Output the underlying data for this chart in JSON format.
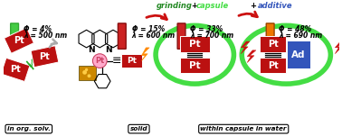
{
  "capsule_color": "#44dd44",
  "arrow_color": "#cc1111",
  "pt_box_color": "#bb1111",
  "pt_text_color": "#ffffff",
  "ad_box_color": "#3355bb",
  "grinding_text_green": "grinding",
  "grinding_text_black": " + ",
  "grinding_text_capsule": "capsule",
  "additive_text_plus": "+ ",
  "additive_text_blue": "additive",
  "label1_phi": "Φ = 4%",
  "label1_lam": "λ = 500 nm",
  "label1_tag": "in org. solv.",
  "label2_phi": "Φ = 15%",
  "label2_lam": "λ = 600 nm",
  "label2_tag": "solid",
  "label3_phi": "Φ = 33%",
  "label3_lam": "λ = 700 nm",
  "label4_phi": "Φ = 48%",
  "label4_lam": "λ = 690 nm",
  "label34_tag": "within capsule in water",
  "tube1_color": "#44cc44",
  "tube2_color": "#cc2222",
  "tube3_color": "#cc2222",
  "tube4_color": "#ee7700",
  "lightning_orange": "#ff8800",
  "lightning_red": "#cc1111",
  "green_lightning": "#22aa22",
  "gray_arrow_color": "#aaaaaa",
  "mol_pt_color": "#ffaacc",
  "mol_pt_edge": "#cc4466",
  "crystal_color": "#cc8800",
  "crystal_color2": "#ffcc44"
}
